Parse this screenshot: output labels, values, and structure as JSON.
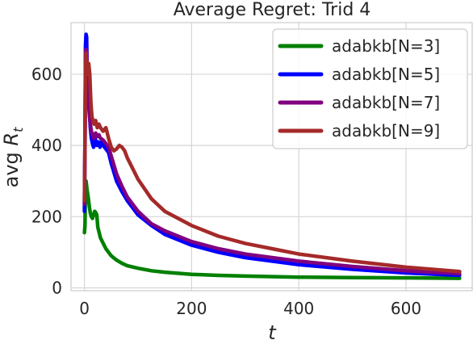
{
  "chart_data": {
    "type": "line",
    "title": "Average Regret: Trid 4",
    "xlabel": "t",
    "ylabel_prefix": "avg ",
    "ylabel_var": "R",
    "ylabel_sub": "t",
    "xlim": [
      -25,
      725
    ],
    "ylim": [
      -8,
      745
    ],
    "xticks": [
      0,
      200,
      400,
      600
    ],
    "yticks": [
      0,
      200,
      400,
      600
    ],
    "grid": true,
    "legend_position": "top-right",
    "series": [
      {
        "name": "adabkb[N=3]",
        "color": "#008000",
        "points": [
          [
            0,
            155
          ],
          [
            1,
            175
          ],
          [
            2,
            290
          ],
          [
            3,
            300
          ],
          [
            5,
            275
          ],
          [
            7,
            255
          ],
          [
            9,
            230
          ],
          [
            11,
            210
          ],
          [
            13,
            200
          ],
          [
            15,
            195
          ],
          [
            17,
            205
          ],
          [
            19,
            215
          ],
          [
            21,
            212
          ],
          [
            23,
            205
          ],
          [
            25,
            170
          ],
          [
            30,
            140
          ],
          [
            40,
            110
          ],
          [
            50,
            90
          ],
          [
            60,
            78
          ],
          [
            70,
            69
          ],
          [
            80,
            62
          ],
          [
            100,
            55
          ],
          [
            125,
            48
          ],
          [
            150,
            44
          ],
          [
            200,
            38
          ],
          [
            250,
            35
          ],
          [
            300,
            33
          ],
          [
            400,
            30
          ],
          [
            500,
            29
          ],
          [
            600,
            28
          ],
          [
            700,
            27
          ]
        ]
      },
      {
        "name": "adabkb[N=5]",
        "color": "#0000ff",
        "points": [
          [
            0,
            215
          ],
          [
            1,
            400
          ],
          [
            2,
            680
          ],
          [
            3,
            712
          ],
          [
            4,
            705
          ],
          [
            5,
            620
          ],
          [
            7,
            560
          ],
          [
            9,
            500
          ],
          [
            11,
            450
          ],
          [
            13,
            420
          ],
          [
            15,
            405
          ],
          [
            17,
            395
          ],
          [
            20,
            420
          ],
          [
            23,
            400
          ],
          [
            26,
            410
          ],
          [
            29,
            395
          ],
          [
            32,
            410
          ],
          [
            35,
            400
          ],
          [
            40,
            390
          ],
          [
            45,
            380
          ],
          [
            50,
            350
          ],
          [
            60,
            300
          ],
          [
            70,
            270
          ],
          [
            80,
            245
          ],
          [
            100,
            205
          ],
          [
            125,
            175
          ],
          [
            150,
            150
          ],
          [
            200,
            120
          ],
          [
            250,
            100
          ],
          [
            300,
            85
          ],
          [
            400,
            65
          ],
          [
            500,
            52
          ],
          [
            600,
            42
          ],
          [
            700,
            35
          ]
        ]
      },
      {
        "name": "adabkb[N=7]",
        "color": "#800080",
        "points": [
          [
            0,
            235
          ],
          [
            1,
            410
          ],
          [
            2,
            640
          ],
          [
            3,
            670
          ],
          [
            4,
            660
          ],
          [
            5,
            590
          ],
          [
            7,
            540
          ],
          [
            9,
            490
          ],
          [
            11,
            460
          ],
          [
            13,
            440
          ],
          [
            15,
            430
          ],
          [
            18,
            420
          ],
          [
            21,
            435
          ],
          [
            24,
            425
          ],
          [
            27,
            430
          ],
          [
            30,
            420
          ],
          [
            35,
            415
          ],
          [
            40,
            405
          ],
          [
            45,
            395
          ],
          [
            50,
            370
          ],
          [
            60,
            320
          ],
          [
            70,
            285
          ],
          [
            80,
            255
          ],
          [
            100,
            215
          ],
          [
            125,
            180
          ],
          [
            150,
            160
          ],
          [
            200,
            130
          ],
          [
            250,
            110
          ],
          [
            300,
            95
          ],
          [
            400,
            75
          ],
          [
            500,
            60
          ],
          [
            600,
            48
          ],
          [
            700,
            40
          ]
        ]
      },
      {
        "name": "adabkb[N=9]",
        "color": "#a52a2a",
        "points": [
          [
            0,
            245
          ],
          [
            1,
            420
          ],
          [
            2,
            600
          ],
          [
            3,
            660
          ],
          [
            4,
            640
          ],
          [
            5,
            620
          ],
          [
            6,
            600
          ],
          [
            8,
            630
          ],
          [
            10,
            600
          ],
          [
            12,
            520
          ],
          [
            14,
            480
          ],
          [
            16,
            470
          ],
          [
            18,
            460
          ],
          [
            21,
            470
          ],
          [
            24,
            450
          ],
          [
            27,
            460
          ],
          [
            30,
            450
          ],
          [
            35,
            440
          ],
          [
            40,
            450
          ],
          [
            45,
            420
          ],
          [
            50,
            395
          ],
          [
            55,
            385
          ],
          [
            60,
            390
          ],
          [
            65,
            400
          ],
          [
            70,
            395
          ],
          [
            75,
            385
          ],
          [
            80,
            365
          ],
          [
            90,
            335
          ],
          [
            100,
            305
          ],
          [
            125,
            250
          ],
          [
            150,
            215
          ],
          [
            200,
            175
          ],
          [
            250,
            145
          ],
          [
            300,
            125
          ],
          [
            350,
            110
          ],
          [
            400,
            95
          ],
          [
            500,
            75
          ],
          [
            600,
            58
          ],
          [
            700,
            46
          ]
        ]
      }
    ]
  }
}
